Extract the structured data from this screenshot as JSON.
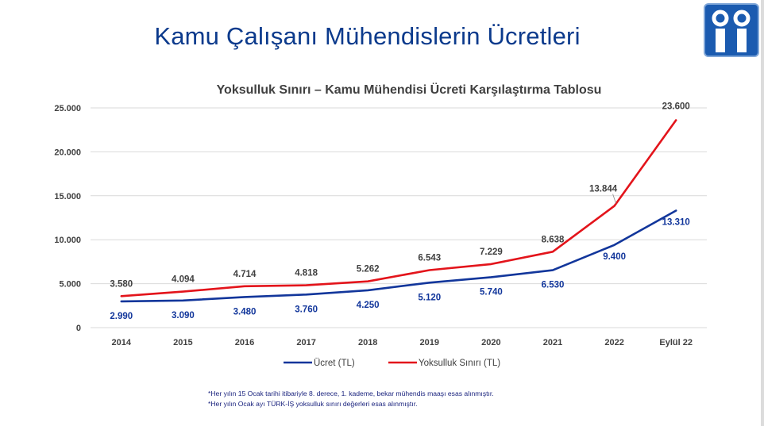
{
  "slide": {
    "title": "Kamu Çalışanı Mühendislerin Ücretleri",
    "notes": [
      "*Her yılın 15 Ocak tarihi itibariyle 8. derece, 1. kademe, bekar mühendis maaşı esas alınmıştır.",
      "*Her yılın Ocak ayı TÜRK-İŞ yoksulluk sınırı değerleri esas alınmıştır."
    ],
    "logo_color": "#1b5bb0"
  },
  "chart_data": {
    "type": "line",
    "title": "Yoksulluk Sınırı – Kamu Mühendisi Ücreti Karşılaştırma Tablosu",
    "categories": [
      "2014",
      "2015",
      "2016",
      "2017",
      "2018",
      "2019",
      "2020",
      "2021",
      "2022",
      "Eylül 22"
    ],
    "series": [
      {
        "name": "Ücret (TL)",
        "color": "#12369b",
        "values": [
          2990,
          3090,
          3480,
          3760,
          4250,
          5120,
          5740,
          6530,
          9400,
          13310
        ],
        "labels": [
          "2.990",
          "3.090",
          "3.480",
          "3.760",
          "4.250",
          "5.120",
          "5.740",
          "6.530",
          "9.400",
          "13.310"
        ]
      },
      {
        "name": "Yoksulluk Sınırı (TL)",
        "color": "#e3141b",
        "values": [
          3580,
          4094,
          4714,
          4818,
          5262,
          6543,
          7229,
          8638,
          13844,
          23600
        ],
        "labels": [
          "3.580",
          "4.094",
          "4.714",
          "4.818",
          "5.262",
          "6.543",
          "7.229",
          "8.638",
          "13.844",
          "23.600"
        ]
      }
    ],
    "y_ticks": [
      0,
      5000,
      10000,
      15000,
      20000,
      25000
    ],
    "y_tick_labels": [
      "0",
      "5.000",
      "10.000",
      "15.000",
      "20.000",
      "25.000"
    ],
    "ylim": [
      0,
      25000
    ],
    "grid": true,
    "legend_position": "bottom"
  }
}
